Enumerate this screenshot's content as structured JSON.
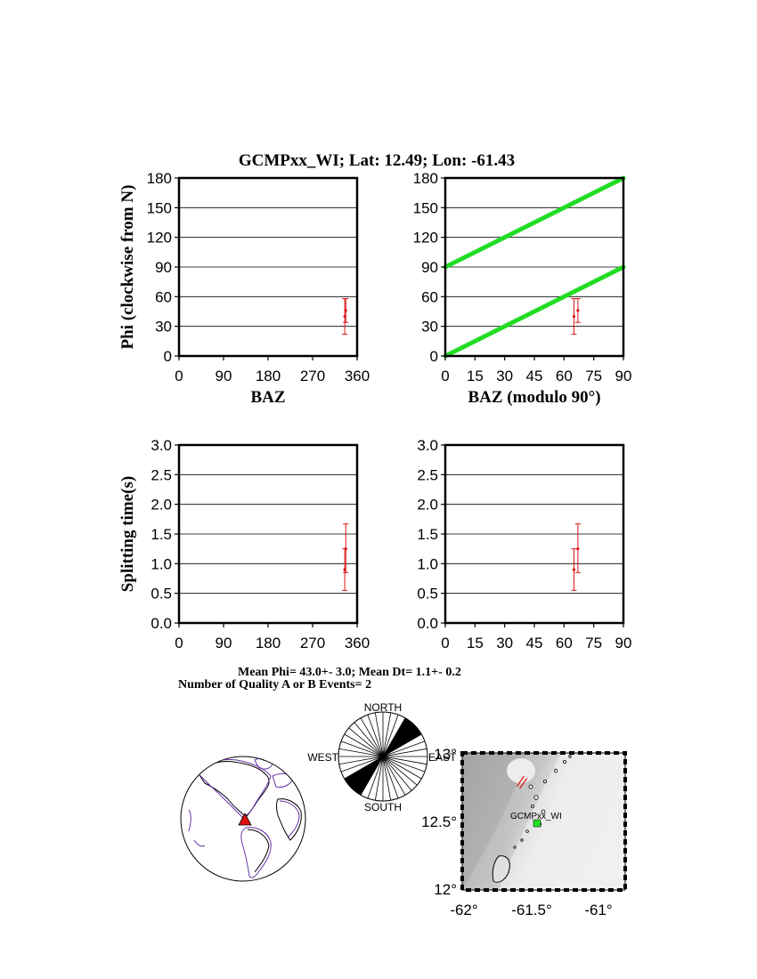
{
  "figure_title": "GCMPxx_WI; Lat:  12.49;  Lon:  -61.43",
  "summary": {
    "mean_line": "Mean Phi= 43.0+-  3.0; Mean Dt=  1.1+-  0.2",
    "count_line": "Number of Quality A or B Events=  2"
  },
  "colors": {
    "data": "#dd1111",
    "reference_line": "#22dd22",
    "continent_outline": "#6633aa",
    "station_triangle": "#dd1111",
    "station_marker": "#22dd22"
  },
  "chart_data": [
    {
      "id": "phi_vs_baz",
      "type": "scatter",
      "title": "",
      "xlabel": "BAZ",
      "ylabel": "Phi (clockwise from N)",
      "xlim": [
        0,
        360
      ],
      "ylim": [
        0,
        180
      ],
      "xticks": [
        0,
        90,
        180,
        270,
        360
      ],
      "yticks": [
        0,
        30,
        60,
        90,
        120,
        150,
        180
      ],
      "grid": "horizontal",
      "points": [
        {
          "x": 335.0,
          "y": 40.0,
          "err_low": 22.0,
          "err_high": 58.0
        },
        {
          "x": 337.0,
          "y": 46.0,
          "err_low": 34.0,
          "err_high": 58.0
        }
      ]
    },
    {
      "id": "phi_vs_baz_mod90",
      "type": "scatter",
      "title": "",
      "xlabel": "BAZ (modulo 90°)",
      "ylabel": "",
      "xlim": [
        0,
        90
      ],
      "ylim": [
        0,
        180
      ],
      "xticks": [
        0,
        15,
        30,
        45,
        60,
        75,
        90
      ],
      "yticks": [
        0,
        30,
        60,
        90,
        120,
        150,
        180
      ],
      "grid": "horizontal",
      "reference_lines": [
        {
          "x": [
            0,
            90
          ],
          "y": [
            0,
            90
          ]
        },
        {
          "x": [
            0,
            90
          ],
          "y": [
            90,
            180
          ]
        }
      ],
      "points": [
        {
          "x": 65.0,
          "y": 40.0,
          "err_low": 22.0,
          "err_high": 58.0
        },
        {
          "x": 67.0,
          "y": 46.0,
          "err_low": 34.0,
          "err_high": 58.0
        }
      ]
    },
    {
      "id": "dt_vs_baz",
      "type": "scatter",
      "title": "",
      "xlabel": "",
      "ylabel": "Splitting time(s)",
      "xlim": [
        0,
        360
      ],
      "ylim": [
        0,
        3
      ],
      "xticks": [
        0,
        90,
        180,
        270,
        360
      ],
      "yticks": [
        0.0,
        0.5,
        1.0,
        1.5,
        2.0,
        2.5,
        3.0
      ],
      "ytick_labels": [
        "0.0",
        "0.5",
        "1.0",
        "1.5",
        "2.0",
        "2.5",
        "3.0"
      ],
      "grid": "horizontal",
      "points": [
        {
          "x": 335.0,
          "y": 0.9,
          "err_low": 0.55,
          "err_high": 1.25
        },
        {
          "x": 337.0,
          "y": 1.25,
          "err_low": 0.85,
          "err_high": 1.67
        }
      ]
    },
    {
      "id": "dt_vs_baz_mod90",
      "type": "scatter",
      "title": "",
      "xlabel": "",
      "ylabel": "",
      "xlim": [
        0,
        90
      ],
      "ylim": [
        0,
        3
      ],
      "xticks": [
        0,
        15,
        30,
        45,
        60,
        75,
        90
      ],
      "yticks": [
        0.0,
        0.5,
        1.0,
        1.5,
        2.0,
        2.5,
        3.0
      ],
      "ytick_labels": [
        "0.0",
        "0.5",
        "1.0",
        "1.5",
        "2.0",
        "2.5",
        "3.0"
      ],
      "grid": "horizontal",
      "points": [
        {
          "x": 65.0,
          "y": 0.9,
          "err_low": 0.55,
          "err_high": 1.25
        },
        {
          "x": 67.0,
          "y": 1.25,
          "err_low": 0.85,
          "err_high": 1.67
        }
      ]
    }
  ],
  "rose": {
    "north": "NORTH",
    "south": "SOUTH",
    "east": "EAST",
    "west": "WEST",
    "sector_width_deg": 10,
    "filled_sectors_deg": [
      [
        30,
        60
      ],
      [
        210,
        240
      ]
    ]
  },
  "map": {
    "station_label": "GCMPxx_WI",
    "lat_ticks": [
      "13°",
      "12.5°",
      "12°"
    ],
    "lon_ticks": [
      "-62°",
      "-61.5°",
      "-61°"
    ],
    "rose_symbol_azimuth_deg": 35
  }
}
